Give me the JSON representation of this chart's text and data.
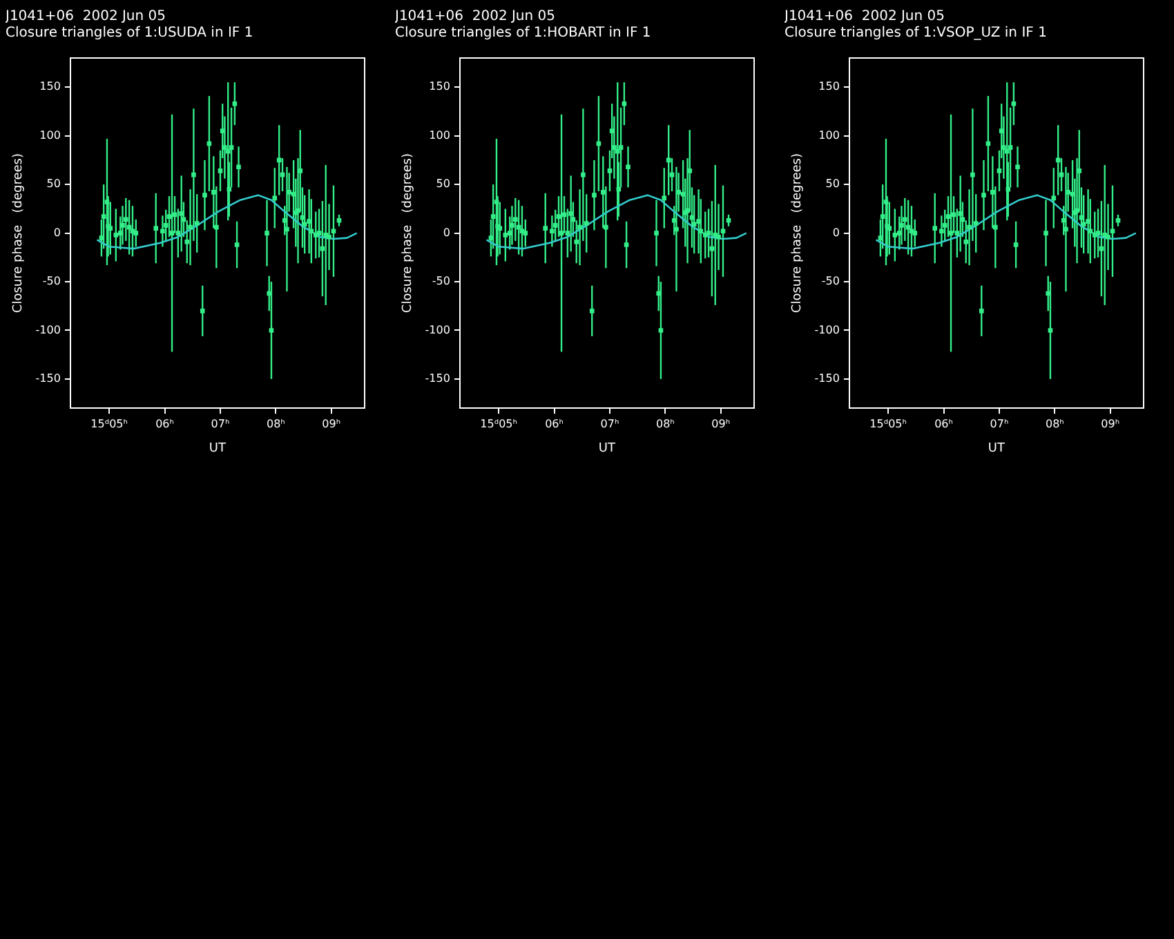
{
  "chart_data": [
    {
      "type": "scatter",
      "title": "J1041+06  2002 Jun 05",
      "subtitle": "Closure triangles of 1:USUDA in IF 1",
      "xlabel": "UT",
      "ylabel": "Closure phase   (degrees)",
      "xlim": [
        4.3,
        9.6
      ],
      "ylim": [
        -180,
        180
      ],
      "xticks": [
        {
          "value": 5,
          "label": "15ᵈ05ʰ"
        },
        {
          "value": 6,
          "label": "06ʰ"
        },
        {
          "value": 7,
          "label": "07ʰ"
        },
        {
          "value": 8,
          "label": "08ʰ"
        },
        {
          "value": 9,
          "label": "09ʰ"
        }
      ],
      "yticks": [
        -150,
        -100,
        -50,
        0,
        50,
        100,
        150
      ],
      "grid": false,
      "legend": false,
      "series": [
        {
          "marker": "square",
          "color": "#33ee88",
          "x": [
            4.86,
            4.9,
            4.96,
            4.98,
            5.02,
            5.12,
            5.2,
            5.24,
            5.3,
            5.36,
            5.42,
            5.48,
            5.84,
            5.96,
            6.02,
            6.08,
            6.13,
            6.18,
            6.24,
            6.3,
            6.34,
            6.4,
            6.46,
            6.52,
            6.58,
            6.68,
            6.72,
            6.8,
            6.88,
            6.93,
            7.0,
            7.04,
            7.08,
            7.14,
            7.16,
            7.2,
            7.26,
            7.3,
            7.33,
            7.84,
            7.88,
            7.92,
            7.98,
            8.06,
            8.12,
            8.16,
            8.2,
            8.24,
            8.32,
            8.36,
            8.4,
            8.44,
            8.48,
            8.52,
            8.6,
            8.64,
            8.72,
            8.78,
            8.84,
            8.9,
            8.96,
            9.04,
            9.14
          ],
          "values": [
            -5,
            17,
            32,
            7,
            5,
            -2,
            0,
            8,
            14,
            6,
            2,
            0,
            5,
            2,
            8,
            17,
            0,
            19,
            0,
            20,
            14,
            -9,
            6,
            60,
            10,
            -80,
            39,
            92,
            42,
            6,
            64,
            105,
            88,
            84,
            45,
            88,
            133,
            -12,
            68,
            0,
            -62,
            -100,
            36,
            75,
            60,
            13,
            4,
            42,
            40,
            21,
            23,
            64,
            16,
            9,
            12,
            2,
            -2,
            0,
            -16,
            -2,
            -4,
            2,
            13
          ],
          "errors": [
            19,
            33,
            65,
            31,
            27,
            27,
            17,
            20,
            22,
            28,
            26,
            14,
            36,
            16,
            16,
            21,
            122,
            19,
            25,
            39,
            18,
            22,
            39,
            68,
            30,
            26,
            36,
            49,
            37,
            42,
            21,
            28,
            32,
            71,
            28,
            41,
            22,
            24,
            21,
            34,
            18,
            50,
            31,
            36,
            17,
            15,
            64,
            20,
            35,
            35,
            54,
            42,
            31,
            30,
            33,
            33,
            24,
            25,
            49,
            72,
            34,
            47,
            6
          ]
        },
        {
          "type": "line",
          "color": "#33cccc",
          "x": [
            4.78,
            5.0,
            5.44,
            5.92,
            6.24,
            6.56,
            6.96,
            7.36,
            7.68,
            7.92,
            8.16,
            8.48,
            8.8,
            9.04,
            9.28,
            9.46
          ],
          "values": [
            -7,
            -14,
            -16,
            -10,
            -4,
            7,
            22,
            34,
            39,
            34,
            22,
            7,
            -4,
            -6,
            -5,
            0
          ]
        }
      ]
    },
    {
      "type": "scatter",
      "title": "J1041+06  2002 Jun 05",
      "subtitle": "Closure triangles of 1:HOBART in IF 1",
      "xlabel": "UT",
      "ylabel": "Closure phase   (degrees)",
      "xlim": [
        4.3,
        9.6
      ],
      "ylim": [
        -180,
        180
      ],
      "xticks": [
        {
          "value": 5,
          "label": "15ᵈ05ʰ"
        },
        {
          "value": 6,
          "label": "06ʰ"
        },
        {
          "value": 7,
          "label": "07ʰ"
        },
        {
          "value": 8,
          "label": "08ʰ"
        },
        {
          "value": 9,
          "label": "09ʰ"
        }
      ],
      "yticks": [
        -150,
        -100,
        -50,
        0,
        50,
        100,
        150
      ],
      "grid": false,
      "legend": false,
      "series": [
        {
          "marker": "square",
          "color": "#33ee88",
          "x": [
            4.86,
            4.9,
            4.96,
            4.98,
            5.02,
            5.12,
            5.2,
            5.24,
            5.3,
            5.36,
            5.42,
            5.48,
            5.84,
            5.96,
            6.02,
            6.08,
            6.13,
            6.18,
            6.24,
            6.3,
            6.34,
            6.4,
            6.46,
            6.52,
            6.58,
            6.68,
            6.72,
            6.8,
            6.88,
            6.93,
            7.0,
            7.04,
            7.08,
            7.14,
            7.16,
            7.2,
            7.26,
            7.3,
            7.33,
            7.84,
            7.88,
            7.92,
            7.98,
            8.06,
            8.12,
            8.16,
            8.2,
            8.24,
            8.32,
            8.36,
            8.4,
            8.44,
            8.48,
            8.52,
            8.6,
            8.64,
            8.72,
            8.78,
            8.84,
            8.9,
            8.96,
            9.04,
            9.14
          ],
          "values": [
            -5,
            17,
            32,
            7,
            5,
            -2,
            0,
            8,
            14,
            6,
            2,
            0,
            5,
            2,
            8,
            17,
            0,
            19,
            0,
            20,
            14,
            -9,
            6,
            60,
            10,
            -80,
            39,
            92,
            42,
            6,
            64,
            105,
            88,
            84,
            45,
            88,
            133,
            -12,
            68,
            0,
            -62,
            -100,
            36,
            75,
            60,
            13,
            4,
            42,
            40,
            21,
            23,
            64,
            16,
            9,
            12,
            2,
            -2,
            0,
            -16,
            -2,
            -4,
            2,
            13
          ],
          "errors": [
            19,
            33,
            65,
            31,
            27,
            27,
            17,
            20,
            22,
            28,
            26,
            14,
            36,
            16,
            16,
            21,
            122,
            19,
            25,
            39,
            18,
            22,
            39,
            68,
            30,
            26,
            36,
            49,
            37,
            42,
            21,
            28,
            32,
            71,
            28,
            41,
            22,
            24,
            21,
            34,
            18,
            50,
            31,
            36,
            17,
            15,
            64,
            20,
            35,
            35,
            54,
            42,
            31,
            30,
            33,
            33,
            24,
            25,
            49,
            72,
            34,
            47,
            6
          ]
        },
        {
          "type": "line",
          "color": "#33cccc",
          "x": [
            4.78,
            5.0,
            5.44,
            5.92,
            6.24,
            6.56,
            6.96,
            7.36,
            7.68,
            7.92,
            8.16,
            8.48,
            8.8,
            9.04,
            9.28,
            9.46
          ],
          "values": [
            -7,
            -14,
            -16,
            -10,
            -4,
            7,
            22,
            34,
            39,
            34,
            22,
            7,
            -4,
            -6,
            -5,
            0
          ]
        }
      ]
    },
    {
      "type": "scatter",
      "title": "J1041+06  2002 Jun 05",
      "subtitle": "Closure triangles of 1:VSOP_UZ in IF 1",
      "xlabel": "UT",
      "ylabel": "Closure phase   (degrees)",
      "xlim": [
        4.3,
        9.6
      ],
      "ylim": [
        -180,
        180
      ],
      "xticks": [
        {
          "value": 5,
          "label": "15ᵈ05ʰ"
        },
        {
          "value": 6,
          "label": "06ʰ"
        },
        {
          "value": 7,
          "label": "07ʰ"
        },
        {
          "value": 8,
          "label": "08ʰ"
        },
        {
          "value": 9,
          "label": "09ʰ"
        }
      ],
      "yticks": [
        -150,
        -100,
        -50,
        0,
        50,
        100,
        150
      ],
      "grid": false,
      "legend": false,
      "series": [
        {
          "marker": "square",
          "color": "#33ee88",
          "x": [
            4.86,
            4.9,
            4.96,
            4.98,
            5.02,
            5.12,
            5.2,
            5.24,
            5.3,
            5.36,
            5.42,
            5.48,
            5.84,
            5.96,
            6.02,
            6.08,
            6.13,
            6.18,
            6.24,
            6.3,
            6.34,
            6.4,
            6.46,
            6.52,
            6.58,
            6.68,
            6.72,
            6.8,
            6.88,
            6.93,
            7.0,
            7.04,
            7.08,
            7.14,
            7.16,
            7.2,
            7.26,
            7.3,
            7.33,
            7.84,
            7.88,
            7.92,
            7.98,
            8.06,
            8.12,
            8.16,
            8.2,
            8.24,
            8.32,
            8.36,
            8.4,
            8.44,
            8.48,
            8.52,
            8.6,
            8.64,
            8.72,
            8.78,
            8.84,
            8.9,
            8.96,
            9.04,
            9.14
          ],
          "values": [
            -5,
            17,
            32,
            7,
            5,
            -2,
            0,
            8,
            14,
            6,
            2,
            0,
            5,
            2,
            8,
            17,
            0,
            19,
            0,
            20,
            14,
            -9,
            6,
            60,
            10,
            -80,
            39,
            92,
            42,
            6,
            64,
            105,
            88,
            84,
            45,
            88,
            133,
            -12,
            68,
            0,
            -62,
            -100,
            36,
            75,
            60,
            13,
            4,
            42,
            40,
            21,
            23,
            64,
            16,
            9,
            12,
            2,
            -2,
            0,
            -16,
            -2,
            -4,
            2,
            13
          ],
          "errors": [
            19,
            33,
            65,
            31,
            27,
            27,
            17,
            20,
            22,
            28,
            26,
            14,
            36,
            16,
            16,
            21,
            122,
            19,
            25,
            39,
            18,
            22,
            39,
            68,
            30,
            26,
            36,
            49,
            37,
            42,
            21,
            28,
            32,
            71,
            28,
            41,
            22,
            24,
            21,
            34,
            18,
            50,
            31,
            36,
            17,
            15,
            64,
            20,
            35,
            35,
            54,
            42,
            31,
            30,
            33,
            33,
            24,
            25,
            49,
            72,
            34,
            47,
            6
          ]
        },
        {
          "type": "line",
          "color": "#33cccc",
          "x": [
            4.78,
            5.0,
            5.44,
            5.92,
            6.24,
            6.56,
            6.96,
            7.36,
            7.68,
            7.92,
            8.16,
            8.48,
            8.8,
            9.04,
            9.28,
            9.46
          ],
          "values": [
            -7,
            -14,
            -16,
            -10,
            -4,
            7,
            22,
            34,
            39,
            34,
            22,
            7,
            -4,
            -6,
            -5,
            0
          ]
        }
      ]
    }
  ]
}
